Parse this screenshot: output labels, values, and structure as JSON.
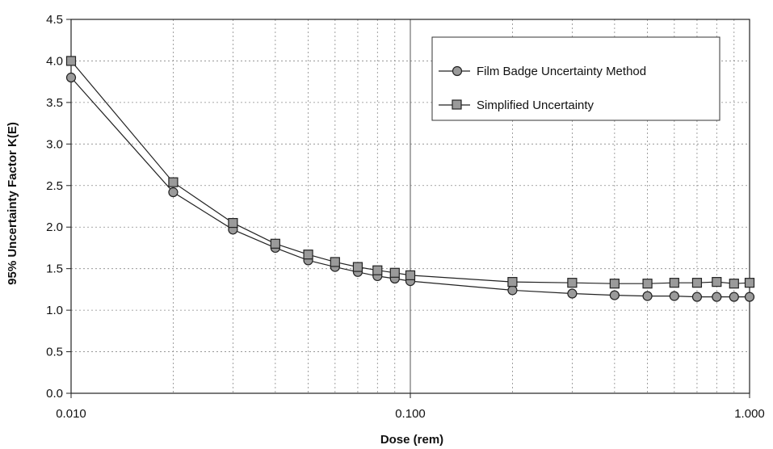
{
  "chart_data": {
    "type": "line",
    "xlabel": "Dose (rem)",
    "ylabel": "95% Uncertainty Factor K(E)",
    "x_scale": "log",
    "xlim": [
      0.01,
      1.0
    ],
    "ylim": [
      0,
      4.5
    ],
    "x_ticks": [
      "0.010",
      "0.100",
      "1.000"
    ],
    "y_ticks": [
      "0.0",
      "0.5",
      "1.0",
      "1.5",
      "2.0",
      "2.5",
      "3.0",
      "3.5",
      "4.0",
      "4.5"
    ],
    "grid": true,
    "legend_position": "top-right",
    "series": [
      {
        "name": "Film Badge Uncertainty Method",
        "marker": "circle",
        "x": [
          0.01,
          0.02,
          0.03,
          0.04,
          0.05,
          0.06,
          0.07,
          0.08,
          0.09,
          0.1,
          0.2,
          0.3,
          0.4,
          0.5,
          0.6,
          0.7,
          0.8,
          0.9,
          1.0
        ],
        "y": [
          3.8,
          2.42,
          1.97,
          1.75,
          1.6,
          1.52,
          1.46,
          1.41,
          1.38,
          1.35,
          1.24,
          1.2,
          1.18,
          1.17,
          1.17,
          1.16,
          1.16,
          1.16,
          1.16
        ]
      },
      {
        "name": "Simplified Uncertainty",
        "marker": "square",
        "x": [
          0.01,
          0.02,
          0.03,
          0.04,
          0.05,
          0.06,
          0.07,
          0.08,
          0.09,
          0.1,
          0.2,
          0.3,
          0.4,
          0.5,
          0.6,
          0.7,
          0.8,
          0.9,
          1.0
        ],
        "y": [
          4.0,
          2.54,
          2.05,
          1.8,
          1.67,
          1.58,
          1.52,
          1.48,
          1.45,
          1.42,
          1.34,
          1.33,
          1.32,
          1.32,
          1.33,
          1.33,
          1.34,
          1.32,
          1.33
        ]
      }
    ]
  },
  "colors": {
    "line": "#222222",
    "marker_fill": "#9a9a9a",
    "grid": "#8a8a8a"
  }
}
